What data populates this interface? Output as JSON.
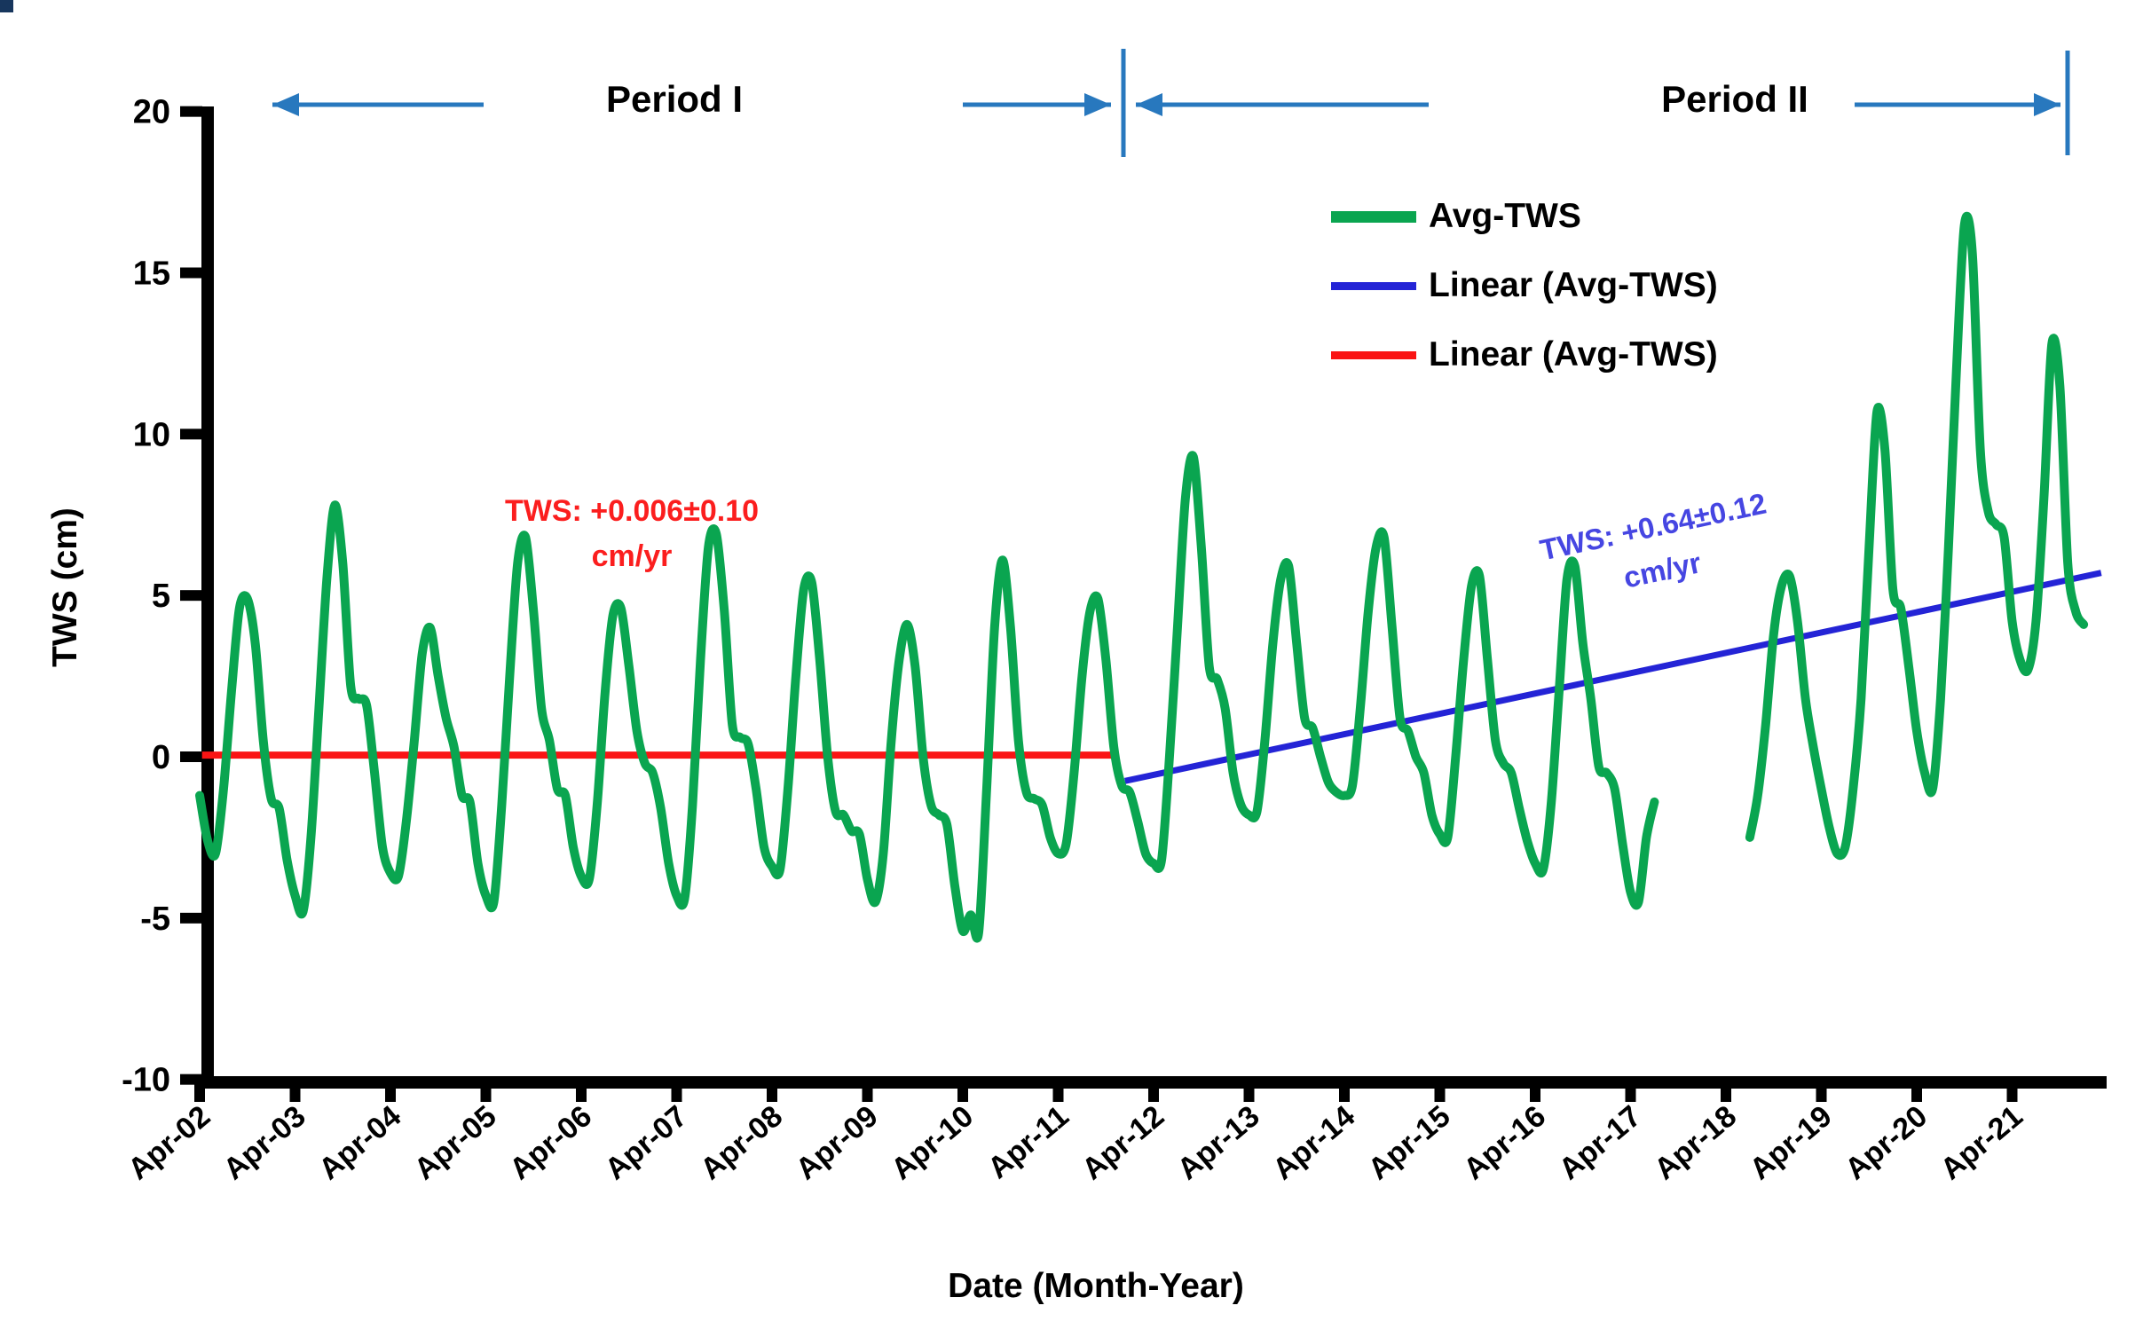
{
  "corner_artifact_color": "#17365d",
  "header": {
    "period1_label": "Period I",
    "period2_label": "Period II",
    "marker_color": "#2878be"
  },
  "legend": {
    "entries": [
      {
        "label": "Avg-TWS",
        "color": "#0aa550",
        "thickness": 13
      },
      {
        "label": "Linear (Avg-TWS)",
        "color": "#2424d6",
        "thickness": 9
      },
      {
        "label": "Linear (Avg-TWS)",
        "color": "#fa1414",
        "thickness": 9
      }
    ]
  },
  "annotations": {
    "period1_trend": {
      "line1": "TWS: +0.006±0.10",
      "line2": "cm/yr",
      "color": "#fb1e1e"
    },
    "period2_trend": {
      "line1": "TWS: +0.64±0.12",
      "line2": "cm/yr",
      "color": "#4646e2"
    }
  },
  "chart_data": {
    "type": "line",
    "title": "",
    "xlabel": "Date (Month-Year)",
    "ylabel": "TWS (cm)",
    "ylim": [
      -10,
      20
    ],
    "yticks": [
      20,
      15,
      10,
      5,
      0,
      -5,
      -10
    ],
    "x_tick_labels": [
      "Apr-02",
      "Apr-03",
      "Apr-04",
      "Apr-05",
      "Apr-06",
      "Apr-07",
      "Apr-08",
      "Apr-09",
      "Apr-10",
      "Apr-11",
      "Apr-12",
      "Apr-13",
      "Apr-14",
      "Apr-15",
      "Apr-16",
      "Apr-17",
      "Apr-18",
      "Apr-19",
      "Apr-20",
      "Apr-21"
    ],
    "x_unit": "months since Apr-2002",
    "grid": false,
    "legend_position": "upper right",
    "gap_note": "no data between Jul-2017 and May-2018",
    "series": [
      {
        "name": "Avg-TWS",
        "color": "#0aa550",
        "width": 10,
        "segments": [
          {
            "t0": 0,
            "values": [
              -1.2,
              -2.6,
              -3.0,
              -1.0,
              2.0,
              4.6,
              4.9,
              3.5,
              0.5,
              -1.3,
              -1.6,
              -3.2,
              -4.3,
              -4.8,
              -2.5,
              1.5,
              5.5,
              7.8,
              6.0,
              2.2,
              1.8,
              1.6,
              -0.5,
              -2.8,
              -3.6,
              -3.7,
              -2.0,
              0.5,
              3.2,
              4.0,
              2.5,
              1.2,
              0.3,
              -1.2,
              -1.4,
              -3.3,
              -4.3,
              -4.5,
              -1.5,
              2.5,
              6.0,
              6.8,
              4.5,
              1.5,
              0.5,
              -1.0,
              -1.2,
              -2.8,
              -3.7,
              -3.8,
              -1.5,
              2.0,
              4.4,
              4.6,
              2.8,
              0.8,
              -0.2,
              -0.5,
              -1.6,
              -3.3,
              -4.3,
              -4.4,
              -1.5,
              3.0,
              6.5,
              6.9,
              4.5,
              1.0,
              0.6,
              0.4,
              -1.0,
              -2.8,
              -3.4,
              -3.5,
              -1.0,
              2.5,
              5.2,
              5.4,
              3.0,
              0.0,
              -1.7,
              -1.8,
              -2.3,
              -2.4,
              -3.8,
              -4.5,
              -3.0,
              0.5,
              3.0,
              4.1,
              2.8,
              0.0,
              -1.5,
              -1.8,
              -2.1,
              -4.0,
              -5.4,
              -4.9,
              -5.45,
              -1.0,
              4.0,
              6.1,
              4.0,
              0.5,
              -1.1,
              -1.3,
              -1.5,
              -2.5,
              -3.0,
              -2.7,
              -0.5,
              2.5,
              4.5,
              4.9,
              3.0,
              0.3,
              -0.9,
              -1.1,
              -2.0,
              -3.0,
              -3.3,
              -3.2,
              0.0,
              4.0,
              8.0,
              9.3,
              6.5,
              2.8,
              2.4,
              1.5,
              -0.5,
              -1.5,
              -1.8,
              -1.7,
              0.5,
              3.5,
              5.5,
              5.9,
              3.5,
              1.2,
              0.9,
              0.0,
              -0.8,
              -1.1,
              -1.2,
              -0.9,
              1.5,
              4.5,
              6.5,
              6.8,
              4.0,
              1.2,
              0.8,
              0.0,
              -0.5,
              -1.8,
              -2.4,
              -2.5,
              0.0,
              3.0,
              5.3,
              5.6,
              3.0,
              0.5,
              -0.2,
              -0.5,
              -1.6,
              -2.6,
              -3.3,
              -3.5,
              -1.5,
              2.0,
              5.5,
              5.9,
              3.5,
              1.8,
              -0.3,
              -0.5,
              -1.0,
              -2.7,
              -4.2,
              -4.5,
              -2.5,
              -1.4
            ]
          },
          {
            "t0": 195,
            "values": [
              -2.5,
              -1.2,
              1.0,
              3.8,
              5.3,
              5.6,
              4.2,
              1.8,
              0.3,
              -1.0,
              -2.2,
              -3.0,
              -2.8,
              -1.0,
              1.8,
              6.5,
              10.7,
              9.5,
              5.2,
              4.6,
              2.8,
              0.8,
              -0.5,
              -1.0,
              1.8,
              6.5,
              12.0,
              16.5,
              15.6,
              9.5,
              7.6,
              7.2,
              6.8,
              4.2,
              3.0,
              2.7,
              4.2,
              8.0,
              12.8,
              11.5,
              6.0,
              4.5,
              4.1
            ]
          }
        ]
      },
      {
        "name": "Linear (Avg-TWS) — Period II trend",
        "color": "#2424d6",
        "width": 7,
        "points": [
          [
            116.4,
            -0.75
          ],
          [
            239.2,
            5.7
          ]
        ],
        "slope_label": "+0.64±0.12 cm/yr"
      },
      {
        "name": "Linear (Avg-TWS) — Period I trend",
        "color": "#fa1414",
        "width": 8,
        "points": [
          [
            0.3,
            0.05
          ],
          [
            115.6,
            0.05
          ]
        ],
        "slope_label": "+0.006±0.10 cm/yr"
      }
    ]
  }
}
